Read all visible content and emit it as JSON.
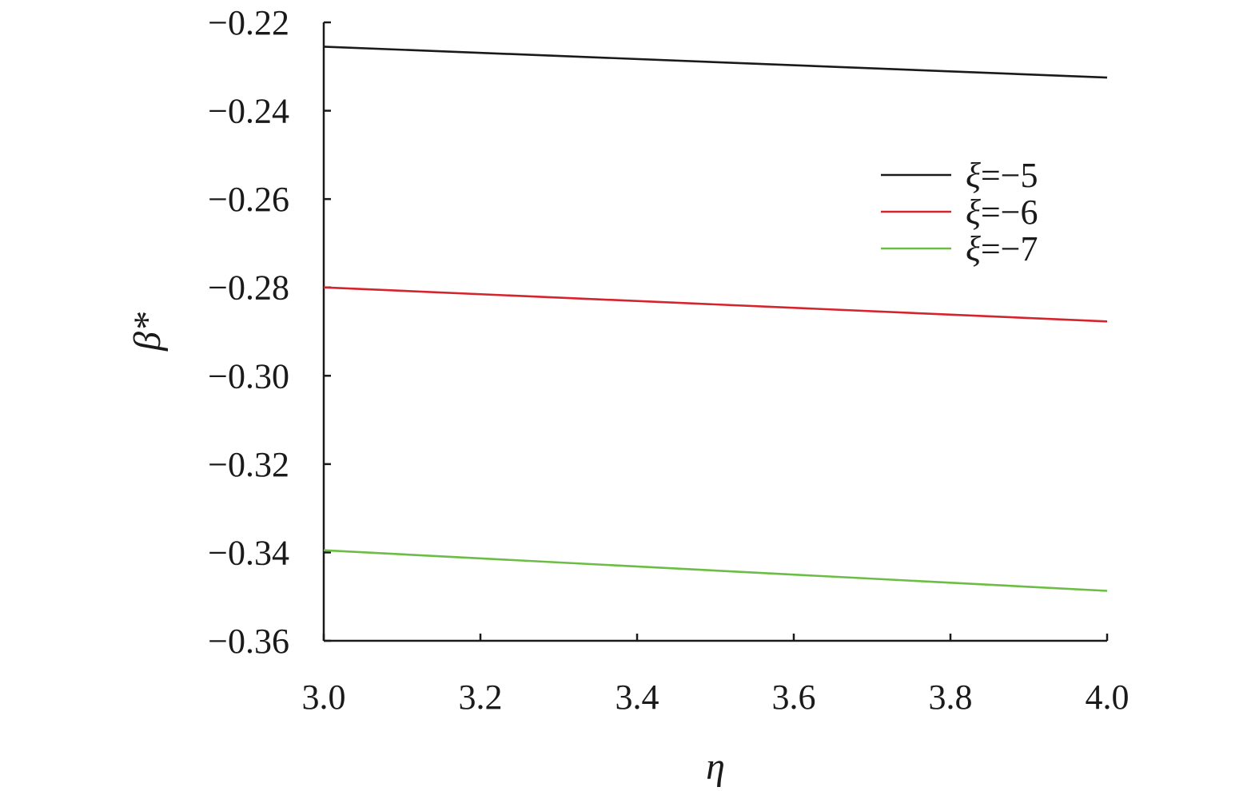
{
  "chart_data": {
    "type": "line",
    "title": "",
    "xlabel": "η",
    "ylabel": "β*",
    "xlim": [
      3.0,
      4.0
    ],
    "ylim": [
      -0.36,
      -0.22
    ],
    "x_ticks": [
      "3.0",
      "3.2",
      "3.4",
      "3.6",
      "3.8",
      "4.0"
    ],
    "y_ticks": [
      "−0.22",
      "−0.24",
      "−0.26",
      "−0.28",
      "−0.30",
      "−0.32",
      "−0.34",
      "−0.36"
    ],
    "grid": false,
    "legend_position": "top-right",
    "legend_symbol": "ξ",
    "series": [
      {
        "name": "ξ=−5",
        "legend_value": "=−5",
        "color": "#1a1a1a",
        "x": [
          3.0,
          4.0
        ],
        "y": [
          -0.2255,
          -0.2325
        ]
      },
      {
        "name": "ξ=−6",
        "legend_value": "=−6",
        "color": "#d4242e",
        "x": [
          3.0,
          4.0
        ],
        "y": [
          -0.28,
          -0.2877
        ]
      },
      {
        "name": "ξ=−7",
        "legend_value": "=−7",
        "color": "#6cbd45",
        "x": [
          3.0,
          4.0
        ],
        "y": [
          -0.3395,
          -0.3487
        ]
      }
    ]
  }
}
